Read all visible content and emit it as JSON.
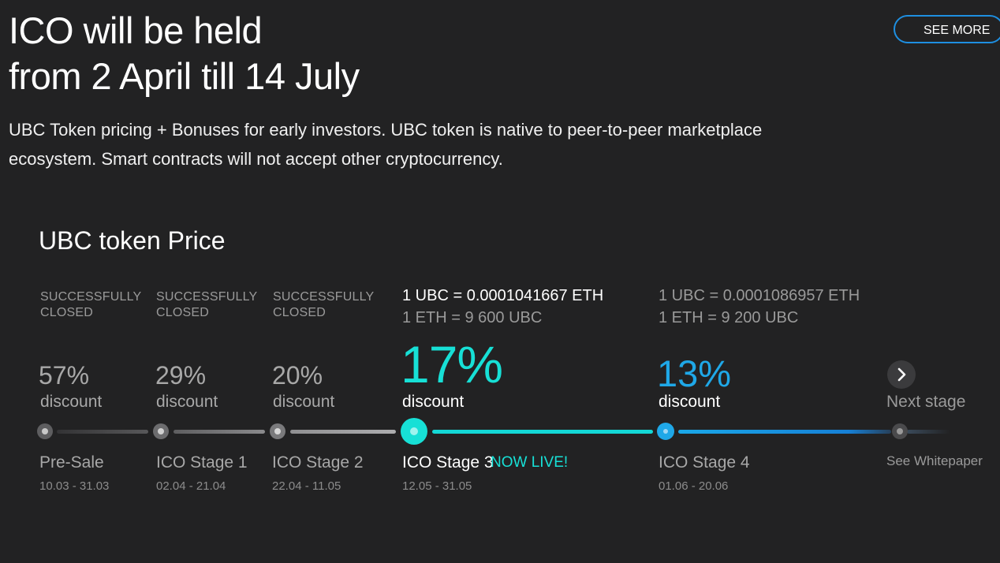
{
  "header": {
    "title_line1": "ICO will be held",
    "title_line2": "from 2 April till 14 July",
    "description_line1": "UBC Token pricing + Bonuses for early investors. UBC token is native to peer-to-peer marketplace",
    "description_line2": "ecosystem. Smart contracts will not accept other cryptocurrency.",
    "see_more_label": "SEE MORE"
  },
  "price": {
    "title": "UBC token Price",
    "stages": [
      {
        "status_line1": "SUCCESSFULLY",
        "status_line2": "CLOSED",
        "discount": "57%",
        "discount_label": "discount",
        "name": "Pre-Sale",
        "dates": "10.03 - 31.03"
      },
      {
        "status_line1": "SUCCESSFULLY",
        "status_line2": "CLOSED",
        "discount": "29%",
        "discount_label": "discount",
        "name": "ICO Stage 1",
        "dates": "02.04 - 21.04"
      },
      {
        "status_line1": "SUCCESSFULLY",
        "status_line2": "CLOSED",
        "discount": "20%",
        "discount_label": "discount",
        "name": "ICO Stage 2",
        "dates": "22.04 - 11.05"
      },
      {
        "rate_line1": "1 UBC = 0.0001041667 ETH",
        "rate_line2": "1 ETH = 9 600 UBC",
        "discount": "17%",
        "discount_label": "discount",
        "name": "ICO Stage 3",
        "badge": "NOW LIVE!",
        "dates": "12.05 - 31.05"
      },
      {
        "rate_line1": "1 UBC = 0.0001086957 ETH",
        "rate_line2": "1 ETH = 9 200 UBC",
        "discount": "13%",
        "discount_label": "discount",
        "name": "ICO Stage 4",
        "dates": "01.06 - 20.06"
      }
    ],
    "next": {
      "label": "Next stage",
      "link": "See Whitepaper"
    }
  },
  "colors": {
    "background": "#222223",
    "live_accent": "#17e0d6",
    "stage4_accent": "#1fa8e8",
    "button_border": "#1e8fe1"
  },
  "icons": {
    "next": "chevron-right-icon"
  }
}
